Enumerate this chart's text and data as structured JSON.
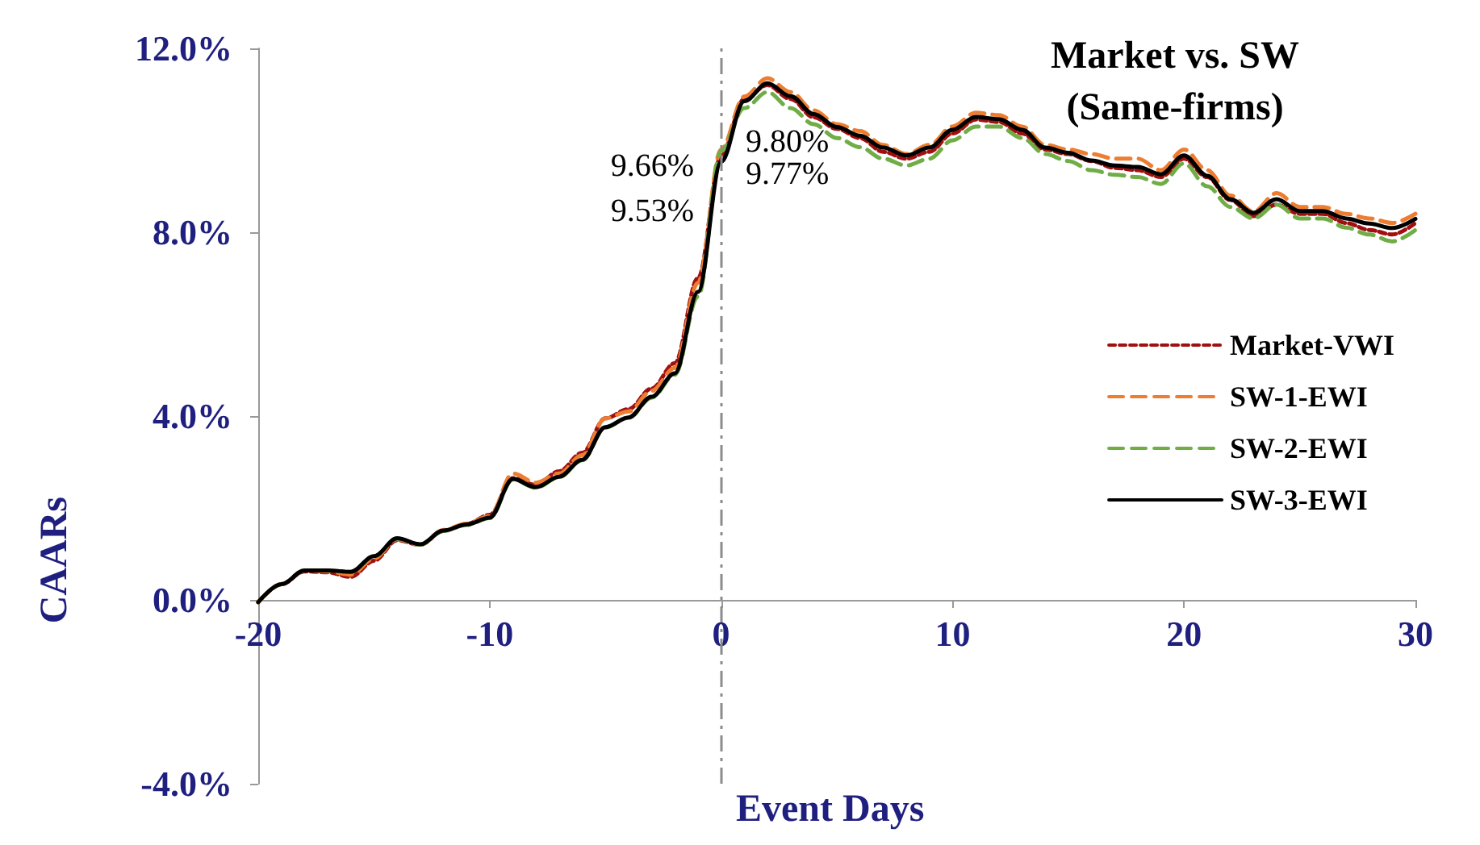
{
  "chart_data": {
    "type": "line",
    "title": "Market vs. SW\n(Same-firms)",
    "xlabel": "Event Days",
    "ylabel": "CAARs",
    "x": [
      -20,
      -19,
      -18,
      -17,
      -16,
      -15,
      -14,
      -13,
      -12,
      -11,
      -10,
      -9,
      -8,
      -7,
      -6,
      -5,
      -4,
      -3,
      -2,
      -1,
      0,
      1,
      2,
      3,
      4,
      5,
      6,
      7,
      8,
      9,
      10,
      11,
      12,
      13,
      14,
      15,
      16,
      17,
      18,
      19,
      20,
      21,
      22,
      23,
      24,
      25,
      26,
      27,
      28,
      29,
      30
    ],
    "series": [
      {
        "name": "Market-VWI",
        "color": "#a01010",
        "line_style": "dotted",
        "values": [
          -0.05,
          0.34,
          0.62,
          0.6,
          0.5,
          0.85,
          1.3,
          1.2,
          1.5,
          1.65,
          1.85,
          2.65,
          2.5,
          2.8,
          3.2,
          3.95,
          4.15,
          4.6,
          5.15,
          7.0,
          9.66,
          10.9,
          11.2,
          10.9,
          10.5,
          10.25,
          10.05,
          9.75,
          9.6,
          9.75,
          10.15,
          10.45,
          10.4,
          10.15,
          9.8,
          9.7,
          9.55,
          9.4,
          9.35,
          9.2,
          9.6,
          9.2,
          8.7,
          8.35,
          8.6,
          8.4,
          8.4,
          8.2,
          8.05,
          7.95,
          8.2
        ]
      },
      {
        "name": "SW-1-EWI",
        "color": "#ed7d31",
        "line_style": "dashed",
        "values": [
          -0.05,
          0.34,
          0.64,
          0.62,
          0.55,
          0.9,
          1.32,
          1.2,
          1.52,
          1.66,
          1.82,
          2.75,
          2.55,
          2.75,
          3.15,
          3.95,
          4.1,
          4.55,
          5.05,
          6.9,
          9.8,
          10.95,
          11.35,
          11.05,
          10.65,
          10.35,
          10.2,
          9.9,
          9.7,
          9.9,
          10.3,
          10.6,
          10.55,
          10.3,
          9.9,
          9.8,
          9.7,
          9.6,
          9.6,
          9.35,
          9.8,
          9.35,
          8.8,
          8.45,
          8.85,
          8.55,
          8.55,
          8.4,
          8.3,
          8.2,
          8.4
        ]
      },
      {
        "name": "SW-2-EWI",
        "color": "#70ad47",
        "line_style": "dashed",
        "values": [
          -0.05,
          0.34,
          0.64,
          0.64,
          0.61,
          0.95,
          1.33,
          1.2,
          1.5,
          1.63,
          1.78,
          2.62,
          2.44,
          2.67,
          3.04,
          3.75,
          3.96,
          4.4,
          4.9,
          6.6,
          9.77,
          10.7,
          11.05,
          10.7,
          10.35,
          10.05,
          9.85,
          9.6,
          9.45,
          9.6,
          10.0,
          10.3,
          10.3,
          10.05,
          9.7,
          9.55,
          9.35,
          9.25,
          9.2,
          9.05,
          9.5,
          9.0,
          8.55,
          8.3,
          8.6,
          8.3,
          8.3,
          8.1,
          7.95,
          7.8,
          8.05
        ]
      },
      {
        "name": "SW-3-EWI",
        "color": "#000000",
        "line_style": "solid",
        "values": [
          -0.05,
          0.34,
          0.64,
          0.64,
          0.61,
          0.95,
          1.34,
          1.21,
          1.51,
          1.64,
          1.79,
          2.63,
          2.45,
          2.68,
          3.05,
          3.76,
          3.97,
          4.42,
          4.93,
          6.7,
          9.53,
          10.85,
          11.24,
          10.96,
          10.57,
          10.29,
          10.1,
          9.84,
          9.67,
          9.84,
          10.23,
          10.51,
          10.46,
          10.23,
          9.84,
          9.73,
          9.56,
          9.45,
          9.42,
          9.26,
          9.67,
          9.23,
          8.72,
          8.42,
          8.72,
          8.46,
          8.46,
          8.3,
          8.19,
          8.09,
          8.29
        ]
      }
    ],
    "annotations": [
      "9.66%",
      "9.53%",
      "9.80%",
      "9.77%"
    ],
    "ref_lines": [
      {
        "axis": "x",
        "value": 0,
        "color": "#8c8c8c",
        "line_style": "dashed"
      }
    ],
    "xlim": [
      -20,
      30
    ],
    "xticks": [
      -20,
      -10,
      0,
      10,
      20,
      30
    ],
    "ylim": [
      -4,
      12
    ],
    "yticks": [
      {
        "value": -4,
        "label": "-4.0%"
      },
      {
        "value": 0,
        "label": "0.0%"
      },
      {
        "value": 4,
        "label": "4.0%"
      },
      {
        "value": 8,
        "label": "8.0%"
      },
      {
        "value": 12,
        "label": "12.0%"
      }
    ],
    "grid": false,
    "legend": "right",
    "marker": "none"
  }
}
